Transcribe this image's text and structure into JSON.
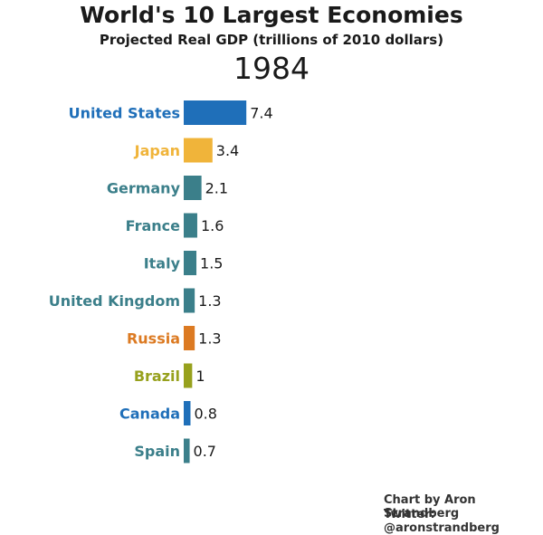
{
  "chart_data": {
    "type": "bar",
    "orientation": "horizontal",
    "title": "World's 10 Largest Economies",
    "subtitle": "Projected Real GDP (trillions of 2010 dollars)",
    "year": "1984",
    "categories": [
      "United States",
      "Japan",
      "Germany",
      "France",
      "Italy",
      "United Kingdom",
      "Russia",
      "Brazil",
      "Canada",
      "Spain"
    ],
    "values": [
      7.4,
      3.4,
      2.1,
      1.6,
      1.5,
      1.3,
      1.3,
      1,
      0.8,
      0.7
    ],
    "value_labels": [
      "7.4",
      "3.4",
      "2.1",
      "1.6",
      "1.5",
      "1.3",
      "1.3",
      "1",
      "0.8",
      "0.7"
    ],
    "colors": [
      "#1f6fb9",
      "#f0b43a",
      "#3b7f8a",
      "#3b7f8a",
      "#3b7f8a",
      "#3b7f8a",
      "#dc7a22",
      "#97a11d",
      "#1f6fb9",
      "#3b7f8a"
    ],
    "label_colors": [
      "#1f6fb9",
      "#f0b43a",
      "#3b7f8a",
      "#3b7f8a",
      "#3b7f8a",
      "#3b7f8a",
      "#dc7a22",
      "#97a11d",
      "#1f6fb9",
      "#3b7f8a"
    ],
    "grid": false,
    "legend": "none"
  },
  "credits": {
    "line1": "Chart by Aron Strandberg",
    "line2": "Twitter: @aronstrandberg"
  }
}
